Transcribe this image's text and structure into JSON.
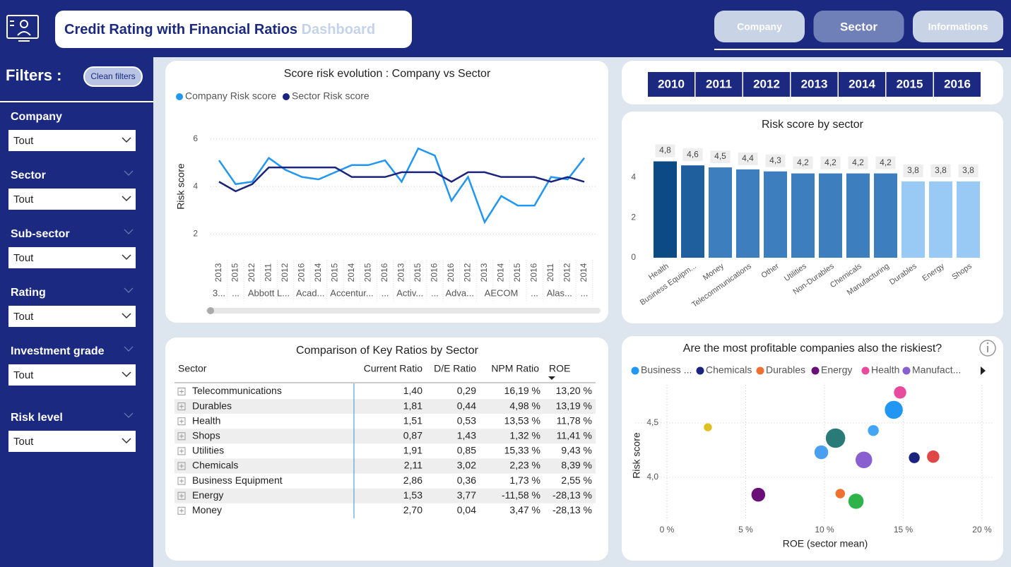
{
  "header": {
    "title": "Credit Rating with Financial Ratios",
    "title_suffix": "Dashboard"
  },
  "nav": {
    "tabs": [
      "Company",
      "Sector",
      "Informations"
    ],
    "active": 1
  },
  "filters": {
    "title": "Filters :",
    "clear": "Clean filters",
    "items": [
      {
        "label": "Company",
        "value": "Tout"
      },
      {
        "label": "Sector",
        "value": "Tout"
      },
      {
        "label": "Sub-sector",
        "value": "Tout"
      },
      {
        "label": "Rating",
        "value": "Tout"
      },
      {
        "label": "Investment grade",
        "value": "Tout"
      },
      {
        "label": "Risk level",
        "value": "Tout"
      }
    ]
  },
  "years": [
    "2010",
    "2011",
    "2012",
    "2013",
    "2014",
    "2015",
    "2016"
  ],
  "chart_data": [
    {
      "type": "line",
      "title": "Score risk evolution : Company vs Sector",
      "ylabel": "Risk score",
      "categories": [
        "2013",
        "2015",
        "2012",
        "2011",
        "2012",
        "2016",
        "2014",
        "2015",
        "2014",
        "2015",
        "2016",
        "2013",
        "2015",
        "2016",
        "2016",
        "2012",
        "2013",
        "2014",
        "2015",
        "2016",
        "2011",
        "2012",
        "2014"
      ],
      "groups": [
        {
          "label": "3...",
          "size": 1
        },
        {
          "label": "...",
          "size": 1
        },
        {
          "label": "Abbott L...",
          "size": 3
        },
        {
          "label": "Acad...",
          "size": 2
        },
        {
          "label": "Accentur...",
          "size": 3
        },
        {
          "label": "...",
          "size": 1
        },
        {
          "label": "Activ...",
          "size": 2
        },
        {
          "label": "...",
          "size": 1
        },
        {
          "label": "Adva...",
          "size": 2
        },
        {
          "label": "AECOM",
          "size": 3
        },
        {
          "label": "...",
          "size": 1
        },
        {
          "label": "Alas...",
          "size": 2
        },
        {
          "label": "...",
          "size": 1
        }
      ],
      "series": [
        {
          "name": "Company Risk score",
          "color": "#2196f3",
          "values": [
            5.1,
            4.1,
            4.2,
            5.2,
            4.7,
            4.4,
            4.3,
            4.6,
            4.9,
            4.9,
            5.1,
            4.2,
            5.6,
            5.3,
            3.4,
            4.4,
            2.5,
            3.6,
            3.2,
            3.2,
            4.4,
            4.3,
            5.2
          ]
        },
        {
          "name": "Sector Risk score",
          "color": "#1a237e",
          "values": [
            4.2,
            3.8,
            4.1,
            4.8,
            4.8,
            4.8,
            4.8,
            4.8,
            4.4,
            4.4,
            4.4,
            4.6,
            4.6,
            4.6,
            4.2,
            4.6,
            4.6,
            4.4,
            4.4,
            4.4,
            4.2,
            4.4,
            4.2
          ]
        }
      ],
      "ylim": [
        1.6,
        6.2
      ],
      "yticks": [
        2,
        4,
        6
      ],
      "grid": true
    },
    {
      "type": "bar",
      "title": "Risk score by sector",
      "categories": [
        "Health",
        "Business Equipm...",
        "Money",
        "Telecommunications",
        "Other",
        "Utilities",
        "Non-Durables",
        "Chemicals",
        "Manufacturing",
        "Durables",
        "Energy",
        "Shops"
      ],
      "values": [
        4.8,
        4.6,
        4.5,
        4.4,
        4.3,
        4.2,
        4.2,
        4.2,
        4.2,
        3.8,
        3.8,
        3.8
      ],
      "value_labels": [
        "4,8",
        "4,6",
        "4,5",
        "4,4",
        "4,3",
        "4,2",
        "4,2",
        "4,2",
        "4,2",
        "3,8",
        "3,8",
        "3,8"
      ],
      "colors": [
        "#0c4a85",
        "#1f5f9e",
        "#3d7ebf",
        "#3d7ebf",
        "#3d7ebf",
        "#3d7ebf",
        "#3d7ebf",
        "#3d7ebf",
        "#3d7ebf",
        "#99c9f5",
        "#99c9f5",
        "#99c9f5"
      ],
      "ylim": [
        0,
        5.1
      ],
      "yticks": [
        0,
        2,
        4
      ]
    },
    {
      "type": "scatter",
      "title": "Are the most profitable companies also the riskiest?",
      "xlabel": "ROE (sector mean)",
      "ylabel": "Risk score",
      "legend": [
        {
          "name": "Business ...",
          "color": "#2196f3"
        },
        {
          "name": "Chemicals",
          "color": "#1a237e"
        },
        {
          "name": "Durables",
          "color": "#f07030"
        },
        {
          "name": "Energy",
          "color": "#6a0f78"
        },
        {
          "name": "Health",
          "color": "#e84a9e"
        },
        {
          "name": "Manufact...",
          "color": "#8a5fd0"
        }
      ],
      "points": [
        {
          "x": 2.6,
          "y": 4.46,
          "size": 6,
          "color": "#e0c020"
        },
        {
          "x": 14.8,
          "y": 4.78,
          "size": 9,
          "color": "#e84a9e"
        },
        {
          "x": 14.4,
          "y": 4.62,
          "size": 13,
          "color": "#2196f3"
        },
        {
          "x": 13.1,
          "y": 4.43,
          "size": 8,
          "color": "#42a5f5"
        },
        {
          "x": 10.7,
          "y": 4.36,
          "size": 14,
          "color": "#2a7a78"
        },
        {
          "x": 9.8,
          "y": 4.23,
          "size": 10,
          "color": "#4a9ff0"
        },
        {
          "x": 12.5,
          "y": 4.16,
          "size": 12,
          "color": "#8a5fd0"
        },
        {
          "x": 15.7,
          "y": 4.18,
          "size": 8,
          "color": "#1a237e"
        },
        {
          "x": 16.9,
          "y": 4.19,
          "size": 9,
          "color": "#e04848"
        },
        {
          "x": 5.8,
          "y": 3.84,
          "size": 10,
          "color": "#6a0f78"
        },
        {
          "x": 11.0,
          "y": 3.85,
          "size": 7,
          "color": "#f07030"
        },
        {
          "x": 12.0,
          "y": 3.78,
          "size": 11,
          "color": "#2db34a"
        }
      ],
      "xlim": [
        -2,
        20.7
      ],
      "xticks": [
        {
          "value": 0,
          "label": "0 %"
        },
        {
          "value": 5,
          "label": "5 %"
        },
        {
          "value": 10,
          "label": "10 %"
        },
        {
          "value": 15,
          "label": "15 %"
        },
        {
          "value": 20,
          "label": "20 %"
        }
      ],
      "ylim": [
        3.6,
        4.85
      ],
      "yticks": [
        {
          "value": 4.0,
          "label": "4,0"
        },
        {
          "value": 4.5,
          "label": "4,5"
        }
      ],
      "grid": true
    }
  ],
  "table": {
    "title": "Comparison of Key Ratios by Sector",
    "columns": [
      "Sector",
      "Current Ratio",
      "D/E Ratio",
      "NPM Ratio",
      "ROE"
    ],
    "rows": [
      [
        "Telecommunications",
        "1,40",
        "0,29",
        "16,19 %",
        "13,20 %"
      ],
      [
        "Durables",
        "1,81",
        "0,44",
        "4,98 %",
        "13,19 %"
      ],
      [
        "Health",
        "1,51",
        "0,53",
        "13,53 %",
        "11,78 %"
      ],
      [
        "Shops",
        "0,87",
        "1,43",
        "1,32 %",
        "11,41 %"
      ],
      [
        "Utilities",
        "1,91",
        "0,85",
        "15,33 %",
        "9,43 %"
      ],
      [
        "Chemicals",
        "2,11",
        "3,02",
        "2,23 %",
        "8,39 %"
      ],
      [
        "Business Equipment",
        "2,86",
        "0,36",
        "1,73 %",
        "2,55 %"
      ],
      [
        "Energy",
        "1,53",
        "3,77",
        "-11,58 %",
        "-28,13 %"
      ],
      [
        "Money",
        "2,70",
        "0,04",
        "3,47 %",
        "-28,13 %"
      ]
    ]
  }
}
